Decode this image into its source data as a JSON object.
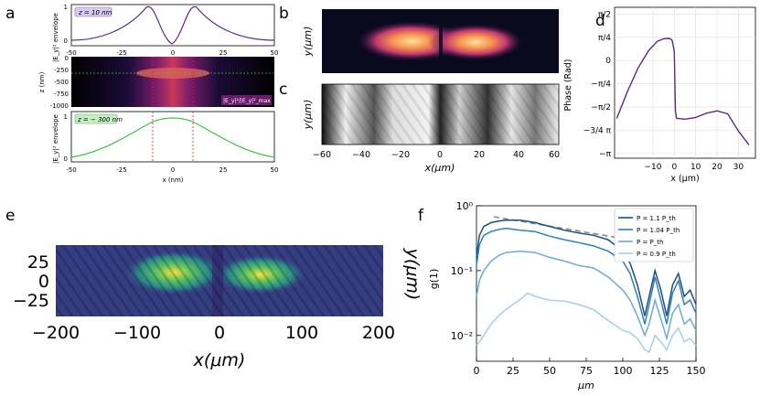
{
  "panel_labels": [
    "a",
    "b",
    "c",
    "d",
    "e",
    "f"
  ],
  "panel_a": {
    "top": {
      "box_label": "z = 10 nm",
      "ylabel": "|E_y|² envelope",
      "xticks": [
        "-50",
        "-25",
        "0",
        "25",
        "50"
      ],
      "yticks": [
        "0",
        "1"
      ],
      "line_color": "#5b2a86"
    },
    "middle": {
      "ylabel": "z (nm)",
      "yticks": [
        "0",
        "-250",
        "-500",
        "-750",
        "-1000"
      ],
      "colorbar_label": "|E_y|²/|E_y|²_max"
    },
    "bottom": {
      "box_label": "z = − 300 nm",
      "ylabel": "|E_y|² envelope",
      "xlabel": "x (nm)",
      "xticks": [
        "-50",
        "-25",
        "0",
        "25",
        "50"
      ],
      "yticks": [
        "0",
        "1"
      ],
      "line_color": "#3cc23c"
    }
  },
  "panel_b": {
    "ylabel": "y(μm)"
  },
  "panel_c": {
    "ylabel": "y(μm)",
    "xlabel": "x(μm)",
    "xticks": [
      "−60",
      "−40",
      "−20",
      "0",
      "20",
      "40",
      "60"
    ]
  },
  "panel_d": {
    "ylabel": "Phase (Rad)",
    "xlabel": "x (μm)",
    "yticks": [
      "π/2",
      "π/4",
      "0",
      "−π/4",
      "−π/2",
      "−3/4 π",
      "−π"
    ],
    "xticks": [
      "−10",
      "0",
      "10",
      "20",
      "30"
    ],
    "line_color": "#5b2a86"
  },
  "panel_e": {
    "ylabel": "y(μm)",
    "xlabel": "x(μm)",
    "xticks": [
      "−200",
      "−100",
      "0",
      "100",
      "200"
    ],
    "yticks": [
      "25",
      "0",
      "−25"
    ]
  },
  "panel_f": {
    "ylabel": "g(1)",
    "xlabel": "μm",
    "xticks": [
      "0",
      "25",
      "50",
      "75",
      "100",
      "125",
      "150"
    ],
    "legend": [
      "P = 1.1 P_th",
      "P = 1.04 P_th",
      "P = P_th",
      "P = 0.9 P_th"
    ],
    "legend_colors": [
      "#1b4f80",
      "#2f7ec0",
      "#6aaad8",
      "#a7cde8"
    ]
  },
  "chart_data": [
    {
      "type": "line",
      "panel": "d",
      "xlabel": "x (μm)",
      "ylabel": "Phase (Rad)",
      "xlim": [
        -28,
        38
      ],
      "ylim": [
        -3.3,
        1.8
      ],
      "x": [
        -27,
        -22,
        -17,
        -12,
        -8,
        -5,
        -3,
        -2,
        -1,
        0,
        0.5,
        1,
        5,
        10,
        15,
        20,
        25,
        30,
        35
      ],
      "y": [
        -1.96,
        -1.05,
        -0.25,
        0.34,
        0.65,
        0.74,
        0.75,
        0.74,
        0.68,
        0.3,
        -1.7,
        -1.95,
        -1.98,
        -1.92,
        -1.78,
        -1.7,
        -1.8,
        -2.38,
        -2.85
      ]
    },
    {
      "type": "line",
      "panel": "f",
      "xlabel": "μm",
      "ylabel": "g(1)",
      "xlim": [
        0,
        150
      ],
      "y_scale": "log",
      "ylim": [
        0.004,
        1.0
      ],
      "series": [
        {
          "name": "P = 1.1 P_th",
          "x": [
            0,
            2,
            5,
            10,
            15,
            20,
            30,
            40,
            50,
            60,
            70,
            80,
            90,
            100,
            105,
            110,
            115,
            118,
            122,
            126,
            130,
            134,
            138,
            142,
            146,
            150
          ],
          "y": [
            0.16,
            0.35,
            0.48,
            0.55,
            0.58,
            0.6,
            0.6,
            0.55,
            0.48,
            0.42,
            0.38,
            0.35,
            0.3,
            0.2,
            0.13,
            0.06,
            0.02,
            0.04,
            0.1,
            0.05,
            0.02,
            0.06,
            0.09,
            0.04,
            0.05,
            0.03
          ]
        },
        {
          "name": "P = 1.04 P_th",
          "x": [
            0,
            2,
            5,
            10,
            15,
            20,
            30,
            40,
            50,
            60,
            70,
            80,
            90,
            100,
            105,
            110,
            115,
            118,
            122,
            126,
            130,
            134,
            138,
            142,
            146,
            150
          ],
          "y": [
            0.12,
            0.25,
            0.35,
            0.4,
            0.43,
            0.45,
            0.42,
            0.4,
            0.34,
            0.3,
            0.27,
            0.24,
            0.2,
            0.14,
            0.09,
            0.04,
            0.015,
            0.03,
            0.08,
            0.035,
            0.015,
            0.045,
            0.07,
            0.03,
            0.035,
            0.022
          ]
        },
        {
          "name": "P = P_th",
          "x": [
            0,
            2,
            5,
            10,
            15,
            20,
            30,
            40,
            50,
            60,
            70,
            80,
            90,
            100,
            105,
            110,
            115,
            118,
            122,
            126,
            130,
            134,
            138,
            142,
            146,
            150
          ],
          "y": [
            0.04,
            0.07,
            0.1,
            0.14,
            0.17,
            0.19,
            0.2,
            0.19,
            0.16,
            0.14,
            0.12,
            0.11,
            0.08,
            0.05,
            0.035,
            0.02,
            0.01,
            0.015,
            0.035,
            0.018,
            0.009,
            0.022,
            0.03,
            0.015,
            0.018,
            0.012
          ]
        },
        {
          "name": "P = 0.9 P_th",
          "x": [
            0,
            2,
            5,
            10,
            15,
            20,
            30,
            35,
            40,
            50,
            60,
            70,
            80,
            90,
            100,
            105,
            110,
            115,
            118,
            122,
            126,
            130,
            134,
            138,
            142,
            146,
            150
          ],
          "y": [
            0.007,
            0.008,
            0.01,
            0.015,
            0.02,
            0.025,
            0.036,
            0.045,
            0.04,
            0.035,
            0.034,
            0.03,
            0.025,
            0.017,
            0.012,
            0.011,
            0.009,
            0.006,
            0.0055,
            0.01,
            0.008,
            0.006,
            0.01,
            0.013,
            0.008,
            0.009,
            0.007
          ]
        }
      ]
    }
  ]
}
